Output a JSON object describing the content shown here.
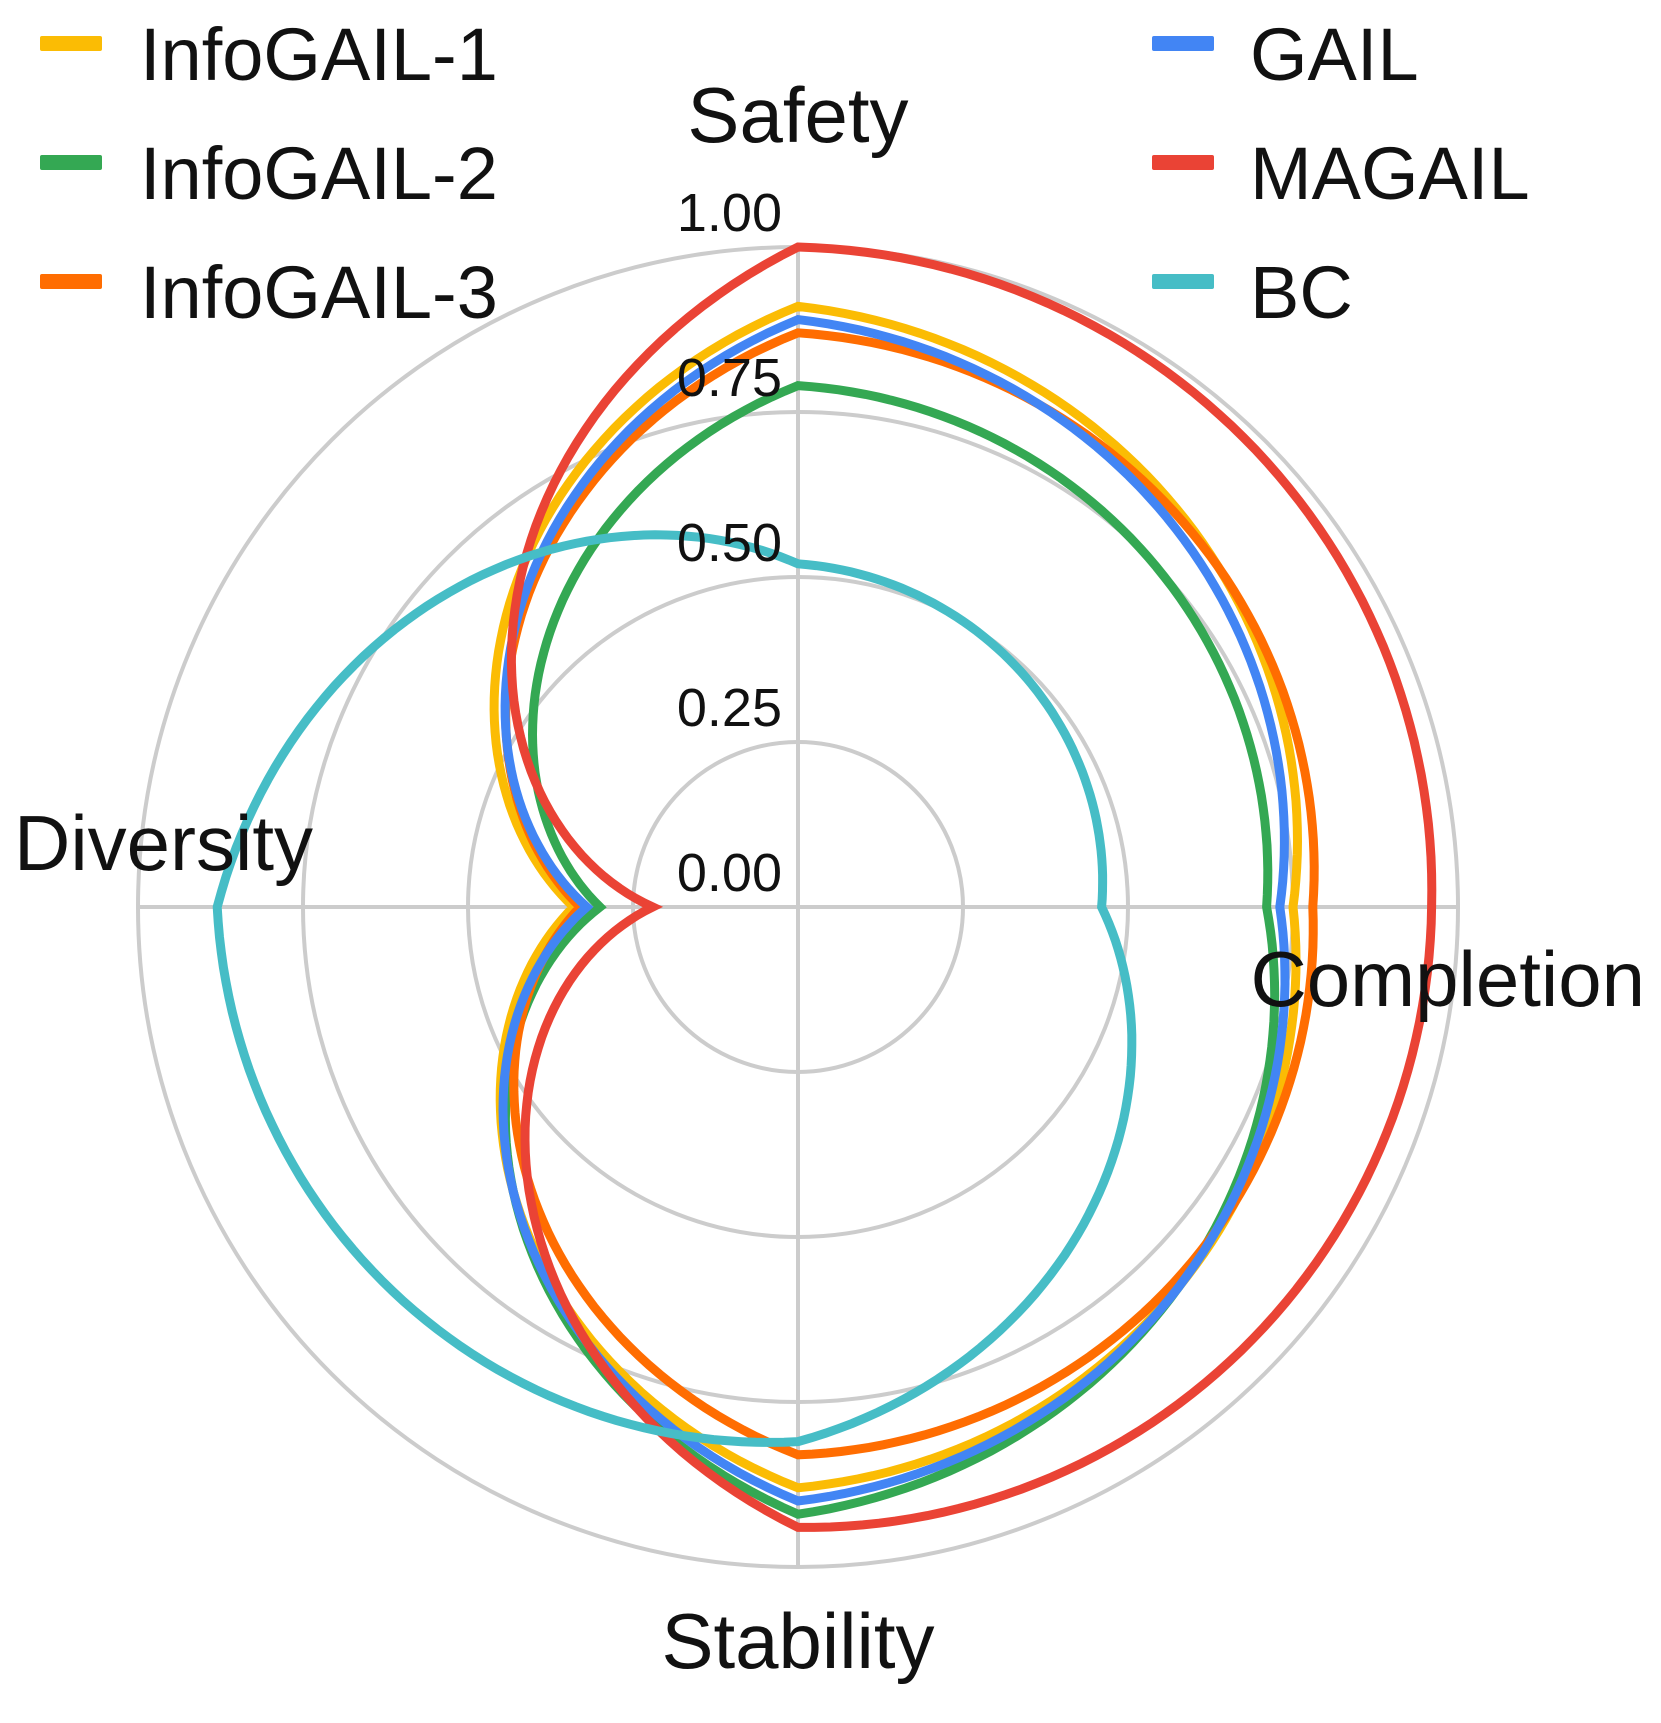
{
  "chart_data": {
    "type": "radar",
    "title": "",
    "axes": [
      "Safety",
      "Completion",
      "Stability",
      "Diversity"
    ],
    "radial_range": [
      0,
      1
    ],
    "radial_ticks": [
      "0.00",
      "0.25",
      "0.50",
      "0.75",
      "1.00"
    ],
    "radial_tick_values": [
      0,
      0.25,
      0.5,
      0.75,
      1.0
    ],
    "grid": true,
    "legend_position": "top",
    "series": [
      {
        "name": "InfoGAIL-1",
        "color": "#fbbc04",
        "values": [
          0.91,
          0.75,
          0.88,
          0.34
        ]
      },
      {
        "name": "InfoGAIL-2",
        "color": "#34a853",
        "values": [
          0.79,
          0.71,
          0.92,
          0.3
        ]
      },
      {
        "name": "InfoGAIL-3",
        "color": "#ff6d01",
        "values": [
          0.87,
          0.78,
          0.83,
          0.33
        ]
      },
      {
        "name": "GAIL",
        "color": "#4285f4",
        "values": [
          0.89,
          0.73,
          0.9,
          0.32
        ]
      },
      {
        "name": "MAGAIL",
        "color": "#ea4335",
        "values": [
          1.0,
          0.96,
          0.94,
          0.22
        ]
      },
      {
        "name": "BC",
        "color": "#46bdc6",
        "values": [
          0.52,
          0.46,
          0.81,
          0.88
        ]
      }
    ]
  }
}
